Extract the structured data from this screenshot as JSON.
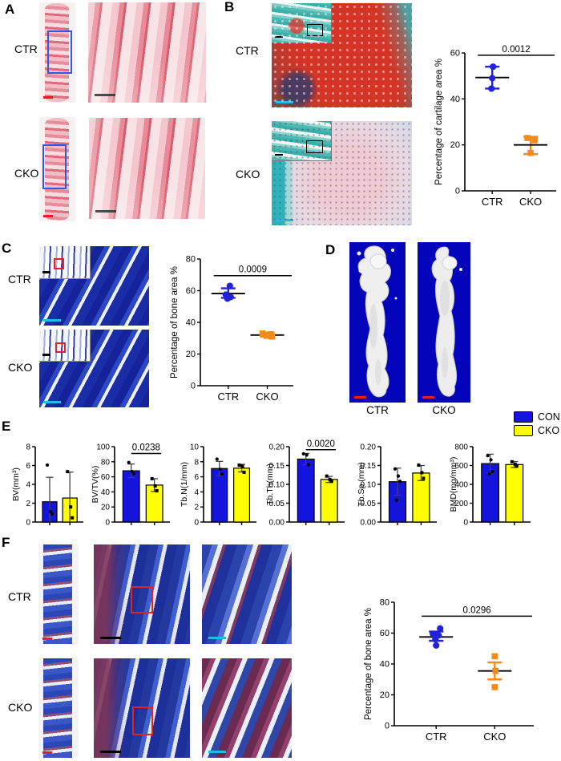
{
  "figure": {
    "panels": {
      "A": {
        "label": "A",
        "row_labels": [
          "CTR",
          "CKO"
        ]
      },
      "B": {
        "label": "B",
        "row_labels": [
          "CTR",
          "CKO"
        ]
      },
      "C": {
        "label": "C",
        "row_labels": [
          "CTR",
          "CKO"
        ]
      },
      "D": {
        "label": "D",
        "col_labels": [
          "CTR",
          "CKO"
        ]
      },
      "E": {
        "label": "E",
        "legend": [
          {
            "label": "CON",
            "color": "#1414dd"
          },
          {
            "label": "CKO",
            "color": "#ffff00"
          }
        ]
      },
      "F": {
        "label": "F",
        "row_labels": [
          "CTR",
          "CKO"
        ]
      }
    },
    "colors": {
      "scatter_blue": "#2222d8",
      "scatter_orange": "#f28a1e",
      "bar_blue": "#1414dd",
      "bar_yellow": "#ffff00"
    }
  },
  "chart_data": [
    {
      "type": "scatter",
      "id": "cartilage-area-scatter",
      "ylabel": "Percentage of cartilage area %",
      "ylim": [
        0,
        60
      ],
      "yticks": [
        0,
        20,
        40,
        60
      ],
      "ytick_labels": [
        "0",
        "20",
        "40",
        "60"
      ],
      "pvalue": "0.0012",
      "pline": 59,
      "groups": [
        {
          "label": "CTR",
          "color": "#2222d8",
          "marker": "circle",
          "points": [
            54,
            49,
            44.5
          ],
          "jitter": [
            1,
            0,
            -1
          ],
          "mean": 49.3,
          "err_low": 44.5,
          "err_high": 54
        },
        {
          "label": "CKO",
          "color": "#f28a1e",
          "marker": "square",
          "points": [
            23,
            22,
            16.5
          ],
          "jitter": [
            -4,
            5,
            0
          ],
          "mean": 20,
          "err_low": 16,
          "err_high": 23.5
        }
      ]
    },
    {
      "type": "scatter",
      "id": "bone-area-scatter-c",
      "ylabel": "Percentage of bone area %",
      "ylim": [
        0,
        80
      ],
      "yticks": [
        0,
        20,
        40,
        60,
        80
      ],
      "ytick_labels": [
        "0",
        "20",
        "40",
        "60",
        "80"
      ],
      "pvalue": "0.0009",
      "pline": 69.5,
      "groups": [
        {
          "label": "CTR",
          "color": "#2222d8",
          "marker": "circle",
          "points": [
            63,
            57.5,
            56,
            55
          ],
          "jitter": [
            2,
            -3,
            3,
            -1
          ],
          "mean": 58.2,
          "err_low": 55.5,
          "err_high": 61.5
        },
        {
          "label": "CKO",
          "color": "#f28a1e",
          "marker": "square",
          "points": [
            33,
            32.5,
            31.5,
            31
          ],
          "jitter": [
            -6,
            4,
            -1,
            6
          ],
          "mean": 32,
          "err_low": 31,
          "err_high": 33.5
        }
      ]
    },
    {
      "type": "bar",
      "id": "bv-bar",
      "ylabel": "BV(mm³)",
      "ylim": [
        0,
        8
      ],
      "yticks": [
        0,
        2,
        4,
        6,
        8
      ],
      "ytick_labels": [
        "0",
        "2",
        "4",
        "6",
        "8"
      ],
      "pvalue": null,
      "pline": null,
      "bars": [
        {
          "label": "CON",
          "color": "#1414dd",
          "marker": "circle",
          "value": 2.15,
          "err": 2.6,
          "points": [
            6.05,
            1.1,
            0.85
          ]
        },
        {
          "label": "CKO",
          "color": "#ffff00",
          "marker": "square",
          "value": 2.55,
          "err": 2.75,
          "points": [
            5.35,
            1.6,
            0.45
          ]
        }
      ]
    },
    {
      "type": "bar",
      "id": "bvtv-bar",
      "ylabel": "BV/TV(%)",
      "ylim": [
        0,
        100
      ],
      "yticks": [
        0,
        20,
        40,
        60,
        80,
        100
      ],
      "ytick_labels": [
        "0",
        "20",
        "40",
        "60",
        "80",
        "100"
      ],
      "pvalue": "0.0238",
      "pline": 91,
      "bars": [
        {
          "label": "CON",
          "color": "#1414dd",
          "marker": "circle",
          "value": 68,
          "err": 9,
          "points": [
            79,
            67,
            64
          ]
        },
        {
          "label": "CKO",
          "color": "#ffff00",
          "marker": "square",
          "value": 49,
          "err": 8.5,
          "points": [
            57.5,
            48,
            41.5
          ]
        }
      ]
    },
    {
      "type": "bar",
      "id": "tbn-bar",
      "ylabel": "Tb.N(1/mm)",
      "ylim": [
        0,
        10
      ],
      "yticks": [
        0,
        2,
        4,
        6,
        8,
        10
      ],
      "ytick_labels": [
        "0",
        "2",
        "4",
        "6",
        "8",
        "10"
      ],
      "pvalue": null,
      "pline": null,
      "bars": [
        {
          "label": "CON",
          "color": "#1414dd",
          "marker": "circle",
          "value": 7.1,
          "err": 0.95,
          "points": [
            8.35,
            7.0,
            6.35
          ]
        },
        {
          "label": "CKO",
          "color": "#ffff00",
          "marker": "square",
          "value": 7.15,
          "err": 0.5,
          "points": [
            7.55,
            7.4,
            6.6
          ]
        }
      ]
    },
    {
      "type": "bar",
      "id": "tbth-bar",
      "ylabel": "Tb.Th(mm)",
      "ylim": [
        0,
        0.2
      ],
      "yticks": [
        0,
        0.05,
        0.1,
        0.15,
        0.2
      ],
      "ytick_labels": [
        "0.00",
        "0.05",
        "0.10",
        "0.15",
        "0.20"
      ],
      "pvalue": "0.0020",
      "pline": 0.192,
      "bars": [
        {
          "label": "CON",
          "color": "#1414dd",
          "marker": "circle",
          "value": 0.167,
          "err": 0.015,
          "points": [
            0.181,
            0.178,
            0.152
          ]
        },
        {
          "label": "CKO",
          "color": "#ffff00",
          "marker": "square",
          "value": 0.113,
          "err": 0.008,
          "points": [
            0.122,
            0.113,
            0.108
          ]
        }
      ]
    },
    {
      "type": "bar",
      "id": "tbsp-bar",
      "ylabel": "Tb.Sp (mm)",
      "ylim": [
        0,
        0.2
      ],
      "yticks": [
        0,
        0.05,
        0.1,
        0.15,
        0.2
      ],
      "ytick_labels": [
        "0.00",
        "0.05",
        "0.10",
        "0.15",
        "0.20"
      ],
      "pvalue": null,
      "pline": null,
      "bars": [
        {
          "label": "CON",
          "color": "#1414dd",
          "marker": "circle",
          "value": 0.107,
          "err": 0.036,
          "points": [
            0.141,
            0.122,
            0.108,
            0.058
          ]
        },
        {
          "label": "CKO",
          "color": "#ffff00",
          "marker": "square",
          "value": 0.13,
          "err": 0.02,
          "points": [
            0.151,
            0.131,
            0.116
          ]
        }
      ]
    },
    {
      "type": "bar",
      "id": "bmd-bar",
      "ylabel": "BMD(mg/mm³)",
      "ylim": [
        0,
        800
      ],
      "yticks": [
        0,
        200,
        400,
        600,
        800
      ],
      "ytick_labels": [
        "0",
        "200",
        "400",
        "600",
        "800"
      ],
      "pvalue": null,
      "pline": null,
      "bars": [
        {
          "label": "CON",
          "color": "#1414dd",
          "marker": "circle",
          "value": 620,
          "err": 100,
          "points": [
            705,
            660,
            535,
            510
          ]
        },
        {
          "label": "CKO",
          "color": "#ffff00",
          "marker": "square",
          "value": 610,
          "err": 32,
          "points": [
            640,
            612,
            598
          ]
        }
      ]
    },
    {
      "type": "scatter",
      "id": "bone-area-scatter-f",
      "ylabel": "Percentage of bone area %",
      "ylim": [
        0,
        80
      ],
      "yticks": [
        0,
        20,
        40,
        60,
        80
      ],
      "ytick_labels": [
        "0",
        "20",
        "40",
        "60",
        "80"
      ],
      "pvalue": "0.0296",
      "pline": 71,
      "groups": [
        {
          "label": "CTR",
          "color": "#2222d8",
          "marker": "circle",
          "points": [
            63,
            59.5,
            58.5,
            56,
            52
          ],
          "jitter": [
            5,
            -4,
            3,
            -1,
            0
          ],
          "mean": 57.5,
          "err_low": 55,
          "err_high": 61
        },
        {
          "label": "CKO",
          "color": "#f28a1e",
          "marker": "square",
          "points": [
            45,
            35.5,
            25
          ],
          "jitter": [
            0,
            1,
            0
          ],
          "mean": 35.5,
          "err_low": 30,
          "err_high": 41
        }
      ]
    }
  ]
}
